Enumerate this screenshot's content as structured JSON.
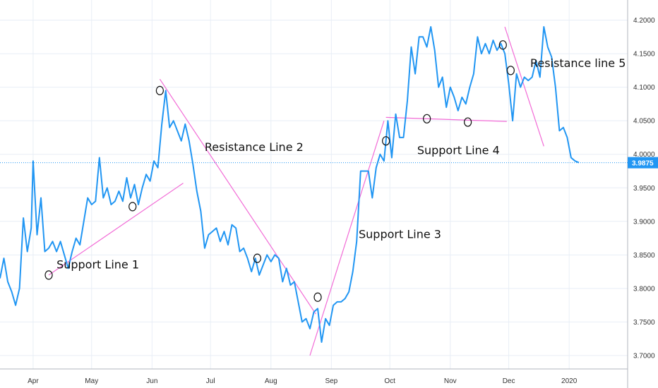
{
  "chart_data": {
    "type": "line",
    "xlim": [
      "2019-03-15",
      "2020-01-31"
    ],
    "ylim": [
      3.68,
      4.23
    ],
    "grid": true,
    "colors": {
      "series": "#2196f3",
      "trend": "#f26bd6",
      "grid": "#e8eef6",
      "last_price_bg": "#2196f3"
    },
    "x_ticks": [
      {
        "date": "2019-04-01",
        "label": "Apr"
      },
      {
        "date": "2019-05-01",
        "label": "May"
      },
      {
        "date": "2019-06-01",
        "label": "Jun"
      },
      {
        "date": "2019-07-01",
        "label": "Jul"
      },
      {
        "date": "2019-08-01",
        "label": "Aug"
      },
      {
        "date": "2019-09-01",
        "label": "Sep"
      },
      {
        "date": "2019-10-01",
        "label": "Oct"
      },
      {
        "date": "2019-11-01",
        "label": "Nov"
      },
      {
        "date": "2019-12-01",
        "label": "Dec"
      },
      {
        "date": "2020-01-01",
        "label": "2020"
      }
    ],
    "y_ticks": [
      {
        "value": 3.7,
        "label": "3.7000"
      },
      {
        "value": 3.75,
        "label": "3.7500"
      },
      {
        "value": 3.8,
        "label": "3.8000"
      },
      {
        "value": 3.85,
        "label": "3.8500"
      },
      {
        "value": 3.9,
        "label": "3.9000"
      },
      {
        "value": 3.95,
        "label": "3.9500"
      },
      {
        "value": 4.0,
        "label": "4.0000"
      },
      {
        "value": 4.05,
        "label": "4.0500"
      },
      {
        "value": 4.1,
        "label": "4.1000"
      },
      {
        "value": 4.15,
        "label": "4.1500"
      },
      {
        "value": 4.2,
        "label": "4.2000"
      }
    ],
    "last_price": {
      "value": 3.9875,
      "label": "3.9875"
    },
    "series": [
      {
        "points": [
          [
            "2019-03-15",
            3.815
          ],
          [
            "2019-03-17",
            3.845
          ],
          [
            "2019-03-19",
            3.81
          ],
          [
            "2019-03-21",
            3.795
          ],
          [
            "2019-03-23",
            3.775
          ],
          [
            "2019-03-25",
            3.8
          ],
          [
            "2019-03-27",
            3.905
          ],
          [
            "2019-03-29",
            3.855
          ],
          [
            "2019-03-31",
            3.89
          ],
          [
            "2019-04-01",
            3.99
          ],
          [
            "2019-04-03",
            3.88
          ],
          [
            "2019-04-05",
            3.935
          ],
          [
            "2019-04-07",
            3.855
          ],
          [
            "2019-04-09",
            3.86
          ],
          [
            "2019-04-11",
            3.87
          ],
          [
            "2019-04-13",
            3.855
          ],
          [
            "2019-04-15",
            3.87
          ],
          [
            "2019-04-17",
            3.85
          ],
          [
            "2019-04-19",
            3.83
          ],
          [
            "2019-04-21",
            3.855
          ],
          [
            "2019-04-23",
            3.875
          ],
          [
            "2019-04-25",
            3.865
          ],
          [
            "2019-04-27",
            3.9
          ],
          [
            "2019-04-29",
            3.935
          ],
          [
            "2019-05-01",
            3.925
          ],
          [
            "2019-05-03",
            3.93
          ],
          [
            "2019-05-05",
            3.995
          ],
          [
            "2019-05-07",
            3.935
          ],
          [
            "2019-05-09",
            3.95
          ],
          [
            "2019-05-11",
            3.925
          ],
          [
            "2019-05-13",
            3.93
          ],
          [
            "2019-05-15",
            3.945
          ],
          [
            "2019-05-17",
            3.93
          ],
          [
            "2019-05-19",
            3.965
          ],
          [
            "2019-05-21",
            3.935
          ],
          [
            "2019-05-23",
            3.955
          ],
          [
            "2019-05-25",
            3.925
          ],
          [
            "2019-05-27",
            3.95
          ],
          [
            "2019-05-29",
            3.97
          ],
          [
            "2019-05-31",
            3.96
          ],
          [
            "2019-06-02",
            3.99
          ],
          [
            "2019-06-04",
            3.98
          ],
          [
            "2019-06-06",
            4.045
          ],
          [
            "2019-06-08",
            4.095
          ],
          [
            "2019-06-10",
            4.04
          ],
          [
            "2019-06-12",
            4.05
          ],
          [
            "2019-06-14",
            4.035
          ],
          [
            "2019-06-16",
            4.02
          ],
          [
            "2019-06-18",
            4.045
          ],
          [
            "2019-06-20",
            4.02
          ],
          [
            "2019-06-22",
            3.985
          ],
          [
            "2019-06-24",
            3.945
          ],
          [
            "2019-06-26",
            3.915
          ],
          [
            "2019-06-28",
            3.86
          ],
          [
            "2019-06-30",
            3.88
          ],
          [
            "2019-07-02",
            3.885
          ],
          [
            "2019-07-04",
            3.89
          ],
          [
            "2019-07-06",
            3.87
          ],
          [
            "2019-07-08",
            3.885
          ],
          [
            "2019-07-10",
            3.865
          ],
          [
            "2019-07-12",
            3.895
          ],
          [
            "2019-07-14",
            3.89
          ],
          [
            "2019-07-16",
            3.855
          ],
          [
            "2019-07-18",
            3.86
          ],
          [
            "2019-07-20",
            3.845
          ],
          [
            "2019-07-22",
            3.825
          ],
          [
            "2019-07-24",
            3.845
          ],
          [
            "2019-07-26",
            3.82
          ],
          [
            "2019-07-28",
            3.835
          ],
          [
            "2019-07-30",
            3.85
          ],
          [
            "2019-08-01",
            3.84
          ],
          [
            "2019-08-03",
            3.85
          ],
          [
            "2019-08-05",
            3.845
          ],
          [
            "2019-08-07",
            3.81
          ],
          [
            "2019-08-09",
            3.83
          ],
          [
            "2019-08-11",
            3.805
          ],
          [
            "2019-08-13",
            3.81
          ],
          [
            "2019-08-15",
            3.78
          ],
          [
            "2019-08-17",
            3.75
          ],
          [
            "2019-08-19",
            3.755
          ],
          [
            "2019-08-21",
            3.74
          ],
          [
            "2019-08-23",
            3.765
          ],
          [
            "2019-08-25",
            3.77
          ],
          [
            "2019-08-27",
            3.72
          ],
          [
            "2019-08-29",
            3.755
          ],
          [
            "2019-08-31",
            3.745
          ],
          [
            "2019-09-02",
            3.775
          ],
          [
            "2019-09-04",
            3.78
          ],
          [
            "2019-09-06",
            3.78
          ],
          [
            "2019-09-08",
            3.785
          ],
          [
            "2019-09-10",
            3.795
          ],
          [
            "2019-09-12",
            3.825
          ],
          [
            "2019-09-14",
            3.87
          ],
          [
            "2019-09-16",
            3.975
          ],
          [
            "2019-09-18",
            3.975
          ],
          [
            "2019-09-20",
            3.975
          ],
          [
            "2019-09-22",
            3.935
          ],
          [
            "2019-09-24",
            3.98
          ],
          [
            "2019-09-26",
            4.0
          ],
          [
            "2019-09-28",
            3.99
          ],
          [
            "2019-09-30",
            4.05
          ],
          [
            "2019-10-02",
            3.995
          ],
          [
            "2019-10-04",
            4.06
          ],
          [
            "2019-10-06",
            4.025
          ],
          [
            "2019-10-08",
            4.025
          ],
          [
            "2019-10-10",
            4.08
          ],
          [
            "2019-10-12",
            4.16
          ],
          [
            "2019-10-14",
            4.12
          ],
          [
            "2019-10-16",
            4.175
          ],
          [
            "2019-10-18",
            4.175
          ],
          [
            "2019-10-20",
            4.16
          ],
          [
            "2019-10-22",
            4.19
          ],
          [
            "2019-10-24",
            4.155
          ],
          [
            "2019-10-26",
            4.1
          ],
          [
            "2019-10-28",
            4.115
          ],
          [
            "2019-10-30",
            4.07
          ],
          [
            "2019-11-01",
            4.1
          ],
          [
            "2019-11-03",
            4.085
          ],
          [
            "2019-11-05",
            4.065
          ],
          [
            "2019-11-07",
            4.085
          ],
          [
            "2019-11-09",
            4.075
          ],
          [
            "2019-11-11",
            4.1
          ],
          [
            "2019-11-13",
            4.12
          ],
          [
            "2019-11-15",
            4.175
          ],
          [
            "2019-11-17",
            4.15
          ],
          [
            "2019-11-19",
            4.165
          ],
          [
            "2019-11-21",
            4.15
          ],
          [
            "2019-11-23",
            4.17
          ],
          [
            "2019-11-25",
            4.155
          ],
          [
            "2019-11-27",
            4.165
          ],
          [
            "2019-11-29",
            4.15
          ],
          [
            "2019-12-01",
            4.105
          ],
          [
            "2019-12-03",
            4.05
          ],
          [
            "2019-12-05",
            4.12
          ],
          [
            "2019-12-07",
            4.1
          ],
          [
            "2019-12-09",
            4.115
          ],
          [
            "2019-12-11",
            4.11
          ],
          [
            "2019-12-13",
            4.115
          ],
          [
            "2019-12-15",
            4.14
          ],
          [
            "2019-12-17",
            4.115
          ],
          [
            "2019-12-19",
            4.19
          ],
          [
            "2019-12-21",
            4.16
          ],
          [
            "2019-12-23",
            4.145
          ],
          [
            "2019-12-25",
            4.1
          ],
          [
            "2019-12-27",
            4.035
          ],
          [
            "2019-12-29",
            4.04
          ],
          [
            "2019-12-31",
            4.025
          ],
          [
            "2020-01-02",
            3.995
          ],
          [
            "2020-01-04",
            3.99
          ],
          [
            "2020-01-06",
            3.9875
          ]
        ]
      }
    ],
    "trendlines": [
      {
        "label": "Support Line 1",
        "p1": [
          "2019-04-09",
          3.82
        ],
        "p2": [
          "2019-06-17",
          3.957
        ],
        "label_pos": [
          "2019-04-13",
          3.83
        ]
      },
      {
        "label": "Resistance Line 2",
        "p1": [
          "2019-06-05",
          4.112
        ],
        "p2": [
          "2019-08-24",
          3.762
        ],
        "label_pos": [
          "2019-06-28",
          4.005
        ]
      },
      {
        "label": "Support Line 3",
        "p1": [
          "2019-08-21",
          3.7
        ],
        "p2": [
          "2019-09-28",
          4.05
        ],
        "label_pos": [
          "2019-09-15",
          3.875
        ]
      },
      {
        "label": "Support Line 4",
        "p1": [
          "2019-09-29",
          4.055
        ],
        "p2": [
          "2019-11-30",
          4.049
        ],
        "label_pos": [
          "2019-10-15",
          4.0
        ]
      },
      {
        "label": "Resistance line 5",
        "p1": [
          "2019-11-29",
          4.19
        ],
        "p2": [
          "2019-12-19",
          4.012
        ],
        "label_pos": [
          "2019-12-12",
          4.13
        ]
      }
    ]
  }
}
